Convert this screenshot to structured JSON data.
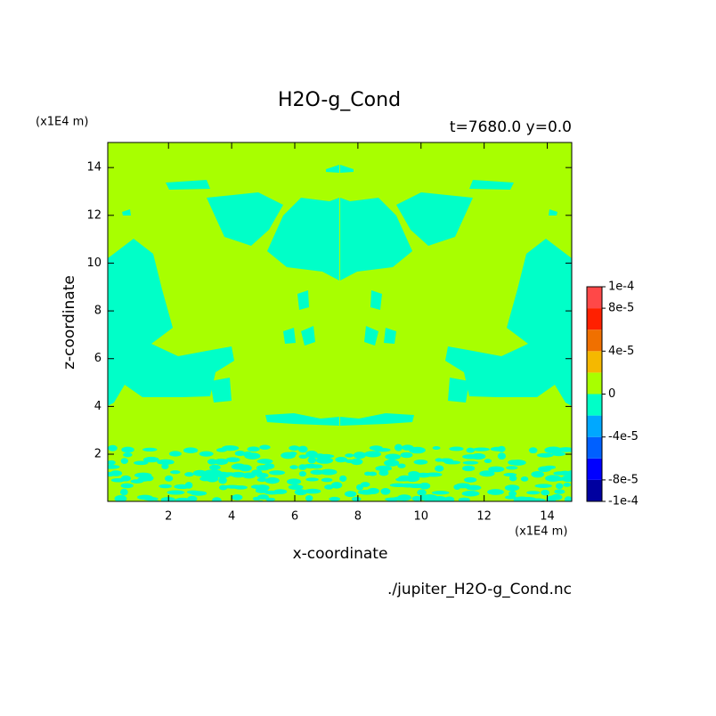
{
  "chart_data": {
    "type": "contour",
    "title": "H2O-g_Cond",
    "subtitle": "t=7680.0 y=0.0",
    "xlabel": "x-coordinate",
    "ylabel": "z-coordinate",
    "x_unit": "(x1E4 m)",
    "y_unit": "(x1E4 m)",
    "source": "./jupiter_H2O-g_Cond.nc",
    "xlim": [
      0.075,
      14.775
    ],
    "ylim": [
      0.025,
      15.05
    ],
    "xticks": [
      2,
      4,
      6,
      8,
      10,
      12,
      14
    ],
    "yticks": [
      2,
      4,
      6,
      8,
      10,
      12,
      14
    ],
    "colorbar": {
      "levels": [
        -0.0001,
        -8e-05,
        -6e-05,
        -4e-05,
        -2e-05,
        0,
        2e-05,
        4e-05,
        6e-05,
        8e-05,
        0.0001
      ],
      "colors": [
        "#0000a0",
        "#0000ff",
        "#0060ff",
        "#00a8ff",
        "#00ffc8",
        "#a8ff00",
        "#f5b800",
        "#f07000",
        "#ff2000",
        "#ff4848"
      ],
      "ticks": [
        {
          "value": 0.0001,
          "label": "1e-4"
        },
        {
          "value": 8e-05,
          "label": "8e-5"
        },
        {
          "value": 4e-05,
          "label": "4e-5"
        },
        0,
        {
          "value": -4e-05,
          "label": "-4e-5"
        },
        {
          "value": -8e-05,
          "label": "-8e-5"
        },
        {
          "value": -0.0001,
          "label": "-1e-4"
        }
      ]
    }
  }
}
